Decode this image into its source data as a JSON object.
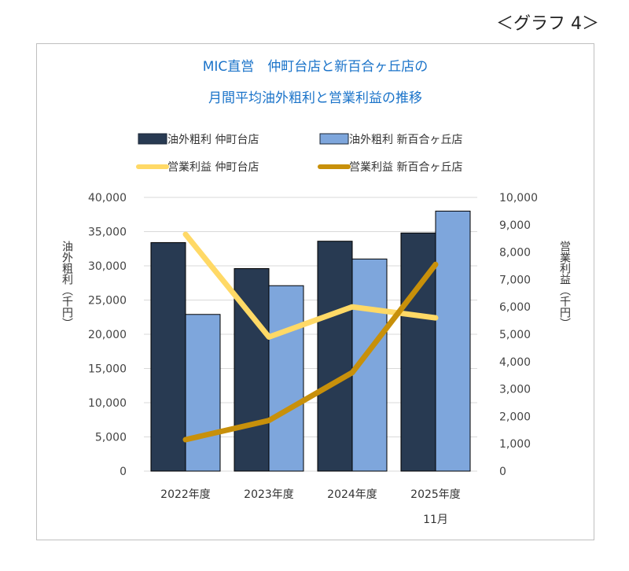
{
  "figure_label": "＜グラフ 4＞",
  "chart_data": {
    "type": "bar",
    "title_lines": [
      "MIC直営　仲町台店と新百合ヶ丘店の",
      "月間平均油外粗利と営業利益の推移"
    ],
    "categories": [
      "2022年度",
      "2023年度",
      "2024年度",
      "2025年度"
    ],
    "category_sublabels": [
      "",
      "",
      "",
      "11月"
    ],
    "y_left": {
      "label": "油外粗利（千円）",
      "range": [
        0,
        40000
      ],
      "ticks": [
        0,
        5000,
        10000,
        15000,
        20000,
        25000,
        30000,
        35000,
        40000
      ],
      "tick_labels": [
        "0",
        "5,000",
        "10,000",
        "15,000",
        "20,000",
        "25,000",
        "30,000",
        "35,000",
        "40,000"
      ]
    },
    "y_right": {
      "label": "営業利益（千円）",
      "range": [
        0,
        10000
      ],
      "ticks": [
        0,
        1000,
        2000,
        3000,
        4000,
        5000,
        6000,
        7000,
        8000,
        9000,
        10000
      ],
      "tick_labels": [
        "0",
        "1,000",
        "2,000",
        "3,000",
        "4,000",
        "5,000",
        "6,000",
        "7,000",
        "8,000",
        "9,000",
        "10,000"
      ]
    },
    "gridlines": true,
    "legend_position": "top",
    "bar_series": [
      {
        "name": "油外粗利 仲町台店",
        "axis": "left",
        "color": "#283a52",
        "values": [
          33400,
          29600,
          33600,
          34800
        ]
      },
      {
        "name": "油外粗利 新百合ヶ丘店",
        "axis": "left",
        "color": "#7ea6dc",
        "values": [
          22900,
          27100,
          31000,
          38000
        ]
      }
    ],
    "line_series": [
      {
        "name": "営業利益 仲町台店",
        "axis": "right",
        "color": "#ffd966",
        "values": [
          8650,
          4900,
          6000,
          5600
        ]
      },
      {
        "name": "営業利益 新百合ヶ丘店",
        "axis": "right",
        "color": "#c8900a",
        "values": [
          1150,
          1850,
          3600,
          7550
        ]
      }
    ]
  }
}
